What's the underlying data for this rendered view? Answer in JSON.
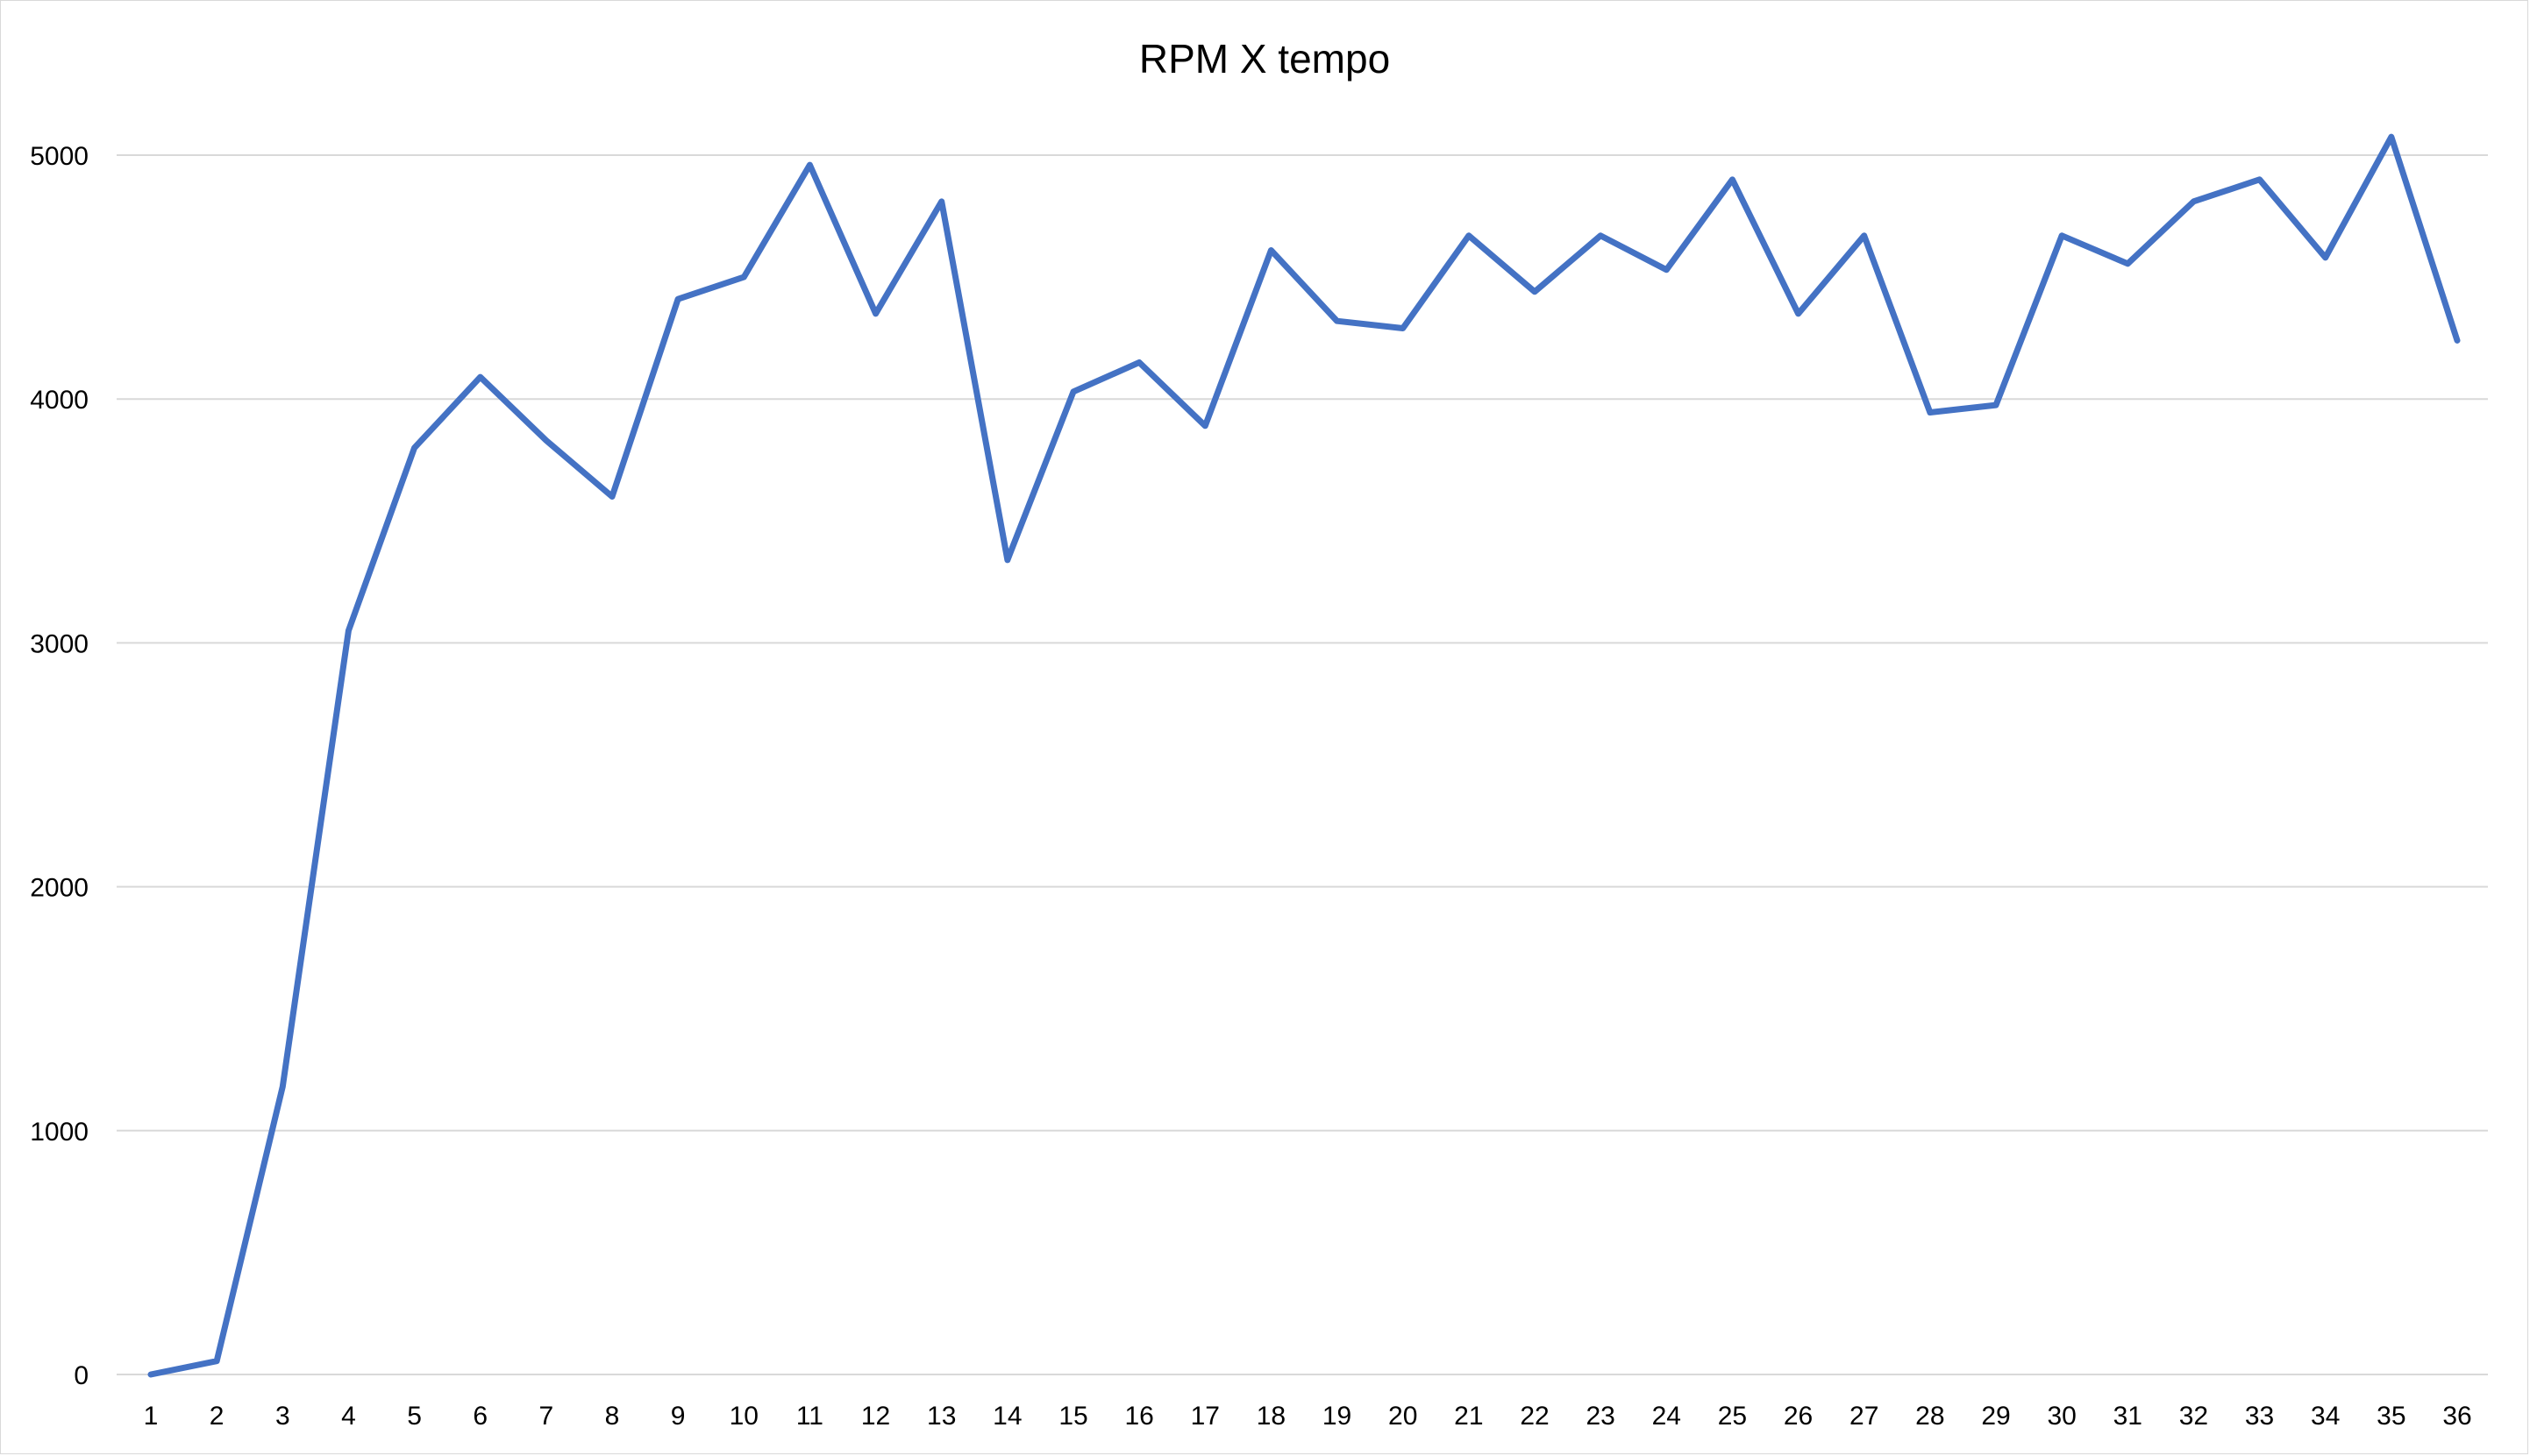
{
  "chart_data": {
    "type": "line",
    "title": "RPM X tempo",
    "xlabel": "",
    "ylabel": "",
    "categories": [
      "1",
      "2",
      "3",
      "4",
      "5",
      "6",
      "7",
      "8",
      "9",
      "10",
      "11",
      "12",
      "13",
      "14",
      "15",
      "16",
      "17",
      "18",
      "19",
      "20",
      "21",
      "22",
      "23",
      "24",
      "25",
      "26",
      "27",
      "28",
      "29",
      "30",
      "31",
      "32",
      "33",
      "34",
      "35",
      "36"
    ],
    "series": [
      {
        "values": [
          0,
          55,
          1180,
          3050,
          3800,
          4090,
          3830,
          3600,
          4410,
          4500,
          4960,
          4350,
          4810,
          3340,
          4030,
          4150,
          3890,
          4610,
          4320,
          4290,
          4670,
          4440,
          4670,
          4530,
          4900,
          4350,
          4670,
          3945,
          3975,
          4670,
          4555,
          4810,
          4900,
          4580,
          5075,
          4240
        ],
        "color": "#4472c4"
      }
    ],
    "ylim": [
      0,
      5000
    ],
    "yticks": [
      0,
      1000,
      2000,
      3000,
      4000,
      5000
    ],
    "grid": true,
    "legend": "none"
  }
}
